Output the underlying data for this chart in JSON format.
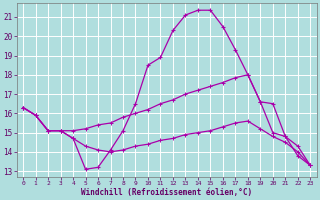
{
  "xlabel": "Windchill (Refroidissement éolien,°C)",
  "bg_color": "#b0dede",
  "grid_color": "#ffffff",
  "line_color": "#aa00aa",
  "xlim": [
    -0.5,
    23.5
  ],
  "ylim": [
    12.7,
    21.7
  ],
  "yticks": [
    13,
    14,
    15,
    16,
    17,
    18,
    19,
    20,
    21
  ],
  "xticks": [
    0,
    1,
    2,
    3,
    4,
    5,
    6,
    7,
    8,
    9,
    10,
    11,
    12,
    13,
    14,
    15,
    16,
    17,
    18,
    19,
    20,
    21,
    22,
    23
  ],
  "line1_x": [
    0,
    1,
    2,
    3,
    4,
    5,
    6,
    7,
    8,
    9,
    10,
    11,
    12,
    13,
    14,
    15,
    16,
    17,
    18,
    19,
    20,
    21,
    22,
    23
  ],
  "line1_y": [
    16.3,
    15.9,
    15.1,
    15.1,
    14.7,
    13.1,
    13.2,
    14.1,
    15.1,
    16.5,
    18.5,
    18.9,
    20.3,
    21.1,
    21.35,
    21.35,
    20.5,
    19.3,
    18.0,
    16.6,
    16.5,
    14.8,
    13.8,
    13.3
  ],
  "line2_x": [
    0,
    1,
    2,
    3,
    4,
    5,
    6,
    7,
    8,
    9,
    10,
    11,
    12,
    13,
    14,
    15,
    16,
    17,
    18,
    19,
    20,
    21,
    22,
    23
  ],
  "line2_y": [
    16.3,
    15.9,
    15.1,
    15.1,
    15.1,
    15.2,
    15.4,
    15.5,
    15.8,
    16.0,
    16.2,
    16.5,
    16.7,
    17.0,
    17.2,
    17.4,
    17.6,
    17.85,
    18.0,
    16.6,
    15.0,
    14.8,
    14.3,
    13.3
  ],
  "line3_x": [
    0,
    1,
    2,
    3,
    4,
    5,
    6,
    7,
    8,
    9,
    10,
    11,
    12,
    13,
    14,
    15,
    16,
    17,
    18,
    19,
    20,
    21,
    22,
    23
  ],
  "line3_y": [
    16.3,
    15.9,
    15.1,
    15.1,
    14.7,
    14.3,
    14.1,
    14.0,
    14.1,
    14.3,
    14.4,
    14.6,
    14.7,
    14.9,
    15.0,
    15.1,
    15.3,
    15.5,
    15.6,
    15.2,
    14.8,
    14.5,
    14.0,
    13.3
  ]
}
